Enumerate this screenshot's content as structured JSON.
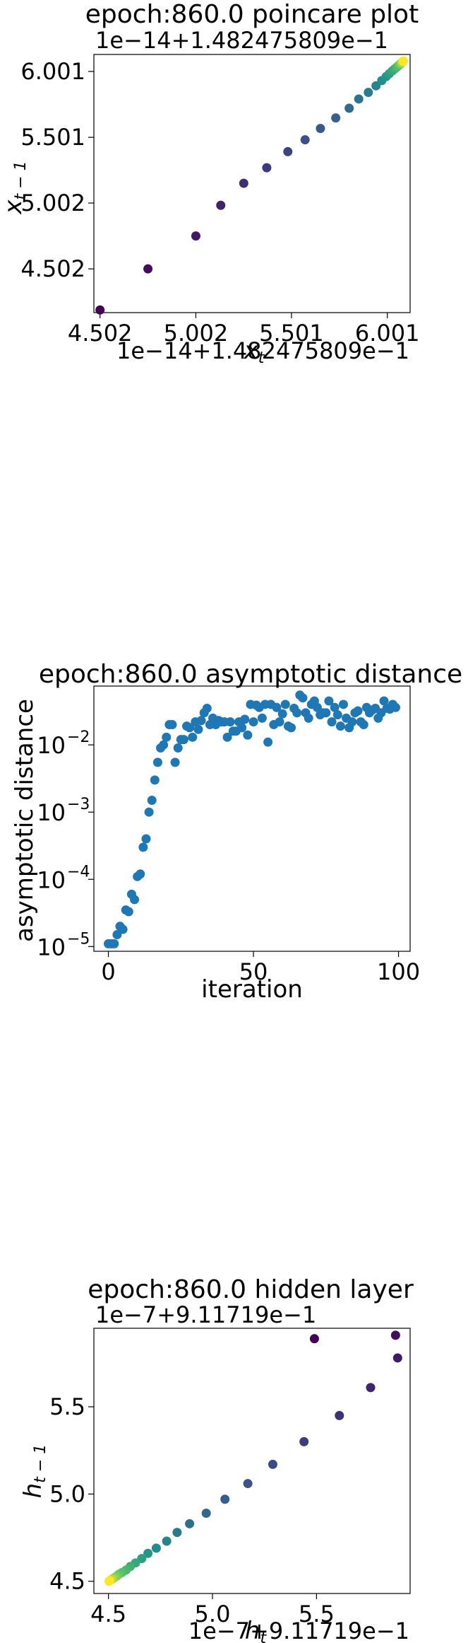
{
  "chart_data": [
    {
      "type": "scatter",
      "title": "epoch:860.0 poincare plot",
      "xlabel": "x_t",
      "ylabel": "x_{t-1}",
      "x_offset_text": "1e−14+1.482475809e−1",
      "y_offset_text": "1e−14+1.482475809e−1",
      "xticks": [
        "4.502",
        "5.002",
        "5.501",
        "6.001"
      ],
      "yticks": [
        "4.502",
        "5.002",
        "5.501",
        "6.001"
      ],
      "xlim": [
        4.47,
        6.12
      ],
      "ylim": [
        4.17,
        6.13
      ],
      "colormap": "viridis",
      "points": [
        [
          4.502,
          4.19
        ],
        [
          4.752,
          4.502
        ],
        [
          5.002,
          4.752
        ],
        [
          5.132,
          4.985
        ],
        [
          5.252,
          5.152
        ],
        [
          5.372,
          5.27
        ],
        [
          5.482,
          5.392
        ],
        [
          5.572,
          5.482
        ],
        [
          5.652,
          5.568
        ],
        [
          5.732,
          5.648
        ],
        [
          5.802,
          5.722
        ],
        [
          5.852,
          5.792
        ],
        [
          5.902,
          5.842
        ],
        [
          5.942,
          5.892
        ],
        [
          5.972,
          5.932
        ],
        [
          5.995,
          5.962
        ],
        [
          6.012,
          5.985
        ],
        [
          6.027,
          6.005
        ],
        [
          6.039,
          6.02
        ],
        [
          6.049,
          6.032
        ],
        [
          6.057,
          6.042
        ],
        [
          6.063,
          6.05
        ],
        [
          6.068,
          6.057
        ],
        [
          6.072,
          6.062
        ],
        [
          6.075,
          6.066
        ],
        [
          6.078,
          6.07
        ],
        [
          6.08,
          6.073
        ],
        [
          6.082,
          6.076
        ],
        [
          6.084,
          6.078
        ],
        [
          6.085,
          6.08
        ]
      ]
    },
    {
      "type": "scatter",
      "title": "epoch:860.0 asymptotic distance",
      "xlabel": "iteration",
      "ylabel": "asymptotic distance",
      "yscale": "log",
      "xticks": [
        "0",
        "50",
        "100"
      ],
      "yticks": [
        "10^-5",
        "10^-4",
        "10^-3",
        "10^-2"
      ],
      "xlim": [
        -5,
        104
      ],
      "ylim": [
        8.5e-06,
        0.075
      ],
      "color": "#1f77b4",
      "x": [
        0,
        1,
        2,
        3,
        4,
        5,
        6,
        7,
        8,
        9,
        10,
        11,
        12,
        13,
        14,
        15,
        16,
        17,
        18,
        19,
        20,
        21,
        22,
        23,
        24,
        25,
        26,
        27,
        28,
        29,
        30,
        31,
        32,
        33,
        34,
        35,
        36,
        37,
        38,
        39,
        40,
        41,
        42,
        43,
        44,
        45,
        46,
        47,
        48,
        49,
        50,
        51,
        52,
        53,
        54,
        55,
        56,
        57,
        58,
        59,
        60,
        61,
        62,
        63,
        64,
        65,
        66,
        67,
        68,
        69,
        70,
        71,
        72,
        73,
        74,
        75,
        76,
        77,
        78,
        79,
        80,
        81,
        82,
        83,
        84,
        85,
        86,
        87,
        88,
        89,
        90,
        91,
        92,
        93,
        94,
        95,
        96,
        97,
        98,
        99
      ],
      "y": [
        1.1e-05,
        1.1e-05,
        1.1e-05,
        1.5e-05,
        2e-05,
        1.8e-05,
        3.5e-05,
        3.3e-05,
        6e-05,
        5e-05,
        0.00011,
        0.00012,
        0.0003,
        0.0004,
        0.001,
        0.0015,
        0.003,
        0.0055,
        0.009,
        0.01,
        0.013,
        0.02,
        0.02,
        0.0055,
        0.009,
        0.012,
        0.012,
        0.019,
        0.018,
        0.013,
        0.022,
        0.017,
        0.023,
        0.03,
        0.035,
        0.02,
        0.025,
        0.02,
        0.023,
        0.022,
        0.022,
        0.013,
        0.022,
        0.016,
        0.016,
        0.022,
        0.018,
        0.024,
        0.014,
        0.04,
        0.022,
        0.039,
        0.036,
        0.025,
        0.04,
        0.011,
        0.04,
        0.02,
        0.036,
        0.022,
        0.029,
        0.04,
        0.019,
        0.018,
        0.035,
        0.03,
        0.055,
        0.05,
        0.03,
        0.025,
        0.04,
        0.045,
        0.036,
        0.028,
        0.03,
        0.03,
        0.045,
        0.022,
        0.036,
        0.028,
        0.019,
        0.04,
        0.025,
        0.018,
        0.022,
        0.03,
        0.032,
        0.022,
        0.02,
        0.036,
        0.03,
        0.033,
        0.035,
        0.025,
        0.03,
        0.045,
        0.035,
        0.034,
        0.04,
        0.036
      ]
    },
    {
      "type": "scatter",
      "title": "epoch:860.0 hidden layer",
      "xlabel": "h_t",
      "ylabel": "h_{t-1}",
      "x_offset_text": "1e−7+9.11719e−1",
      "y_offset_text": "1e−7+9.11719e−1",
      "xticks": [
        "4.5",
        "5.0",
        "5.5"
      ],
      "yticks": [
        "4.5",
        "5.0",
        "5.5"
      ],
      "xlim": [
        4.43,
        5.95
      ],
      "ylim": [
        4.43,
        5.95
      ],
      "colormap": "viridis",
      "points": [
        [
          5.49,
          5.89
        ],
        [
          5.88,
          5.91
        ],
        [
          5.89,
          5.78
        ],
        [
          5.76,
          5.61
        ],
        [
          5.61,
          5.45
        ],
        [
          5.44,
          5.3
        ],
        [
          5.29,
          5.17
        ],
        [
          5.17,
          5.06
        ],
        [
          5.06,
          4.97
        ],
        [
          4.97,
          4.89
        ],
        [
          4.89,
          4.83
        ],
        [
          4.83,
          4.78
        ],
        [
          4.78,
          4.73
        ],
        [
          4.73,
          4.69
        ],
        [
          4.69,
          4.66
        ],
        [
          4.66,
          4.63
        ],
        [
          4.63,
          4.605
        ],
        [
          4.605,
          4.585
        ],
        [
          4.585,
          4.565
        ],
        [
          4.565,
          4.55
        ],
        [
          4.55,
          4.54
        ],
        [
          4.54,
          4.53
        ],
        [
          4.53,
          4.522
        ],
        [
          4.522,
          4.515
        ],
        [
          4.515,
          4.51
        ],
        [
          4.51,
          4.506
        ],
        [
          4.506,
          4.503
        ],
        [
          4.503,
          4.5
        ]
      ]
    }
  ]
}
